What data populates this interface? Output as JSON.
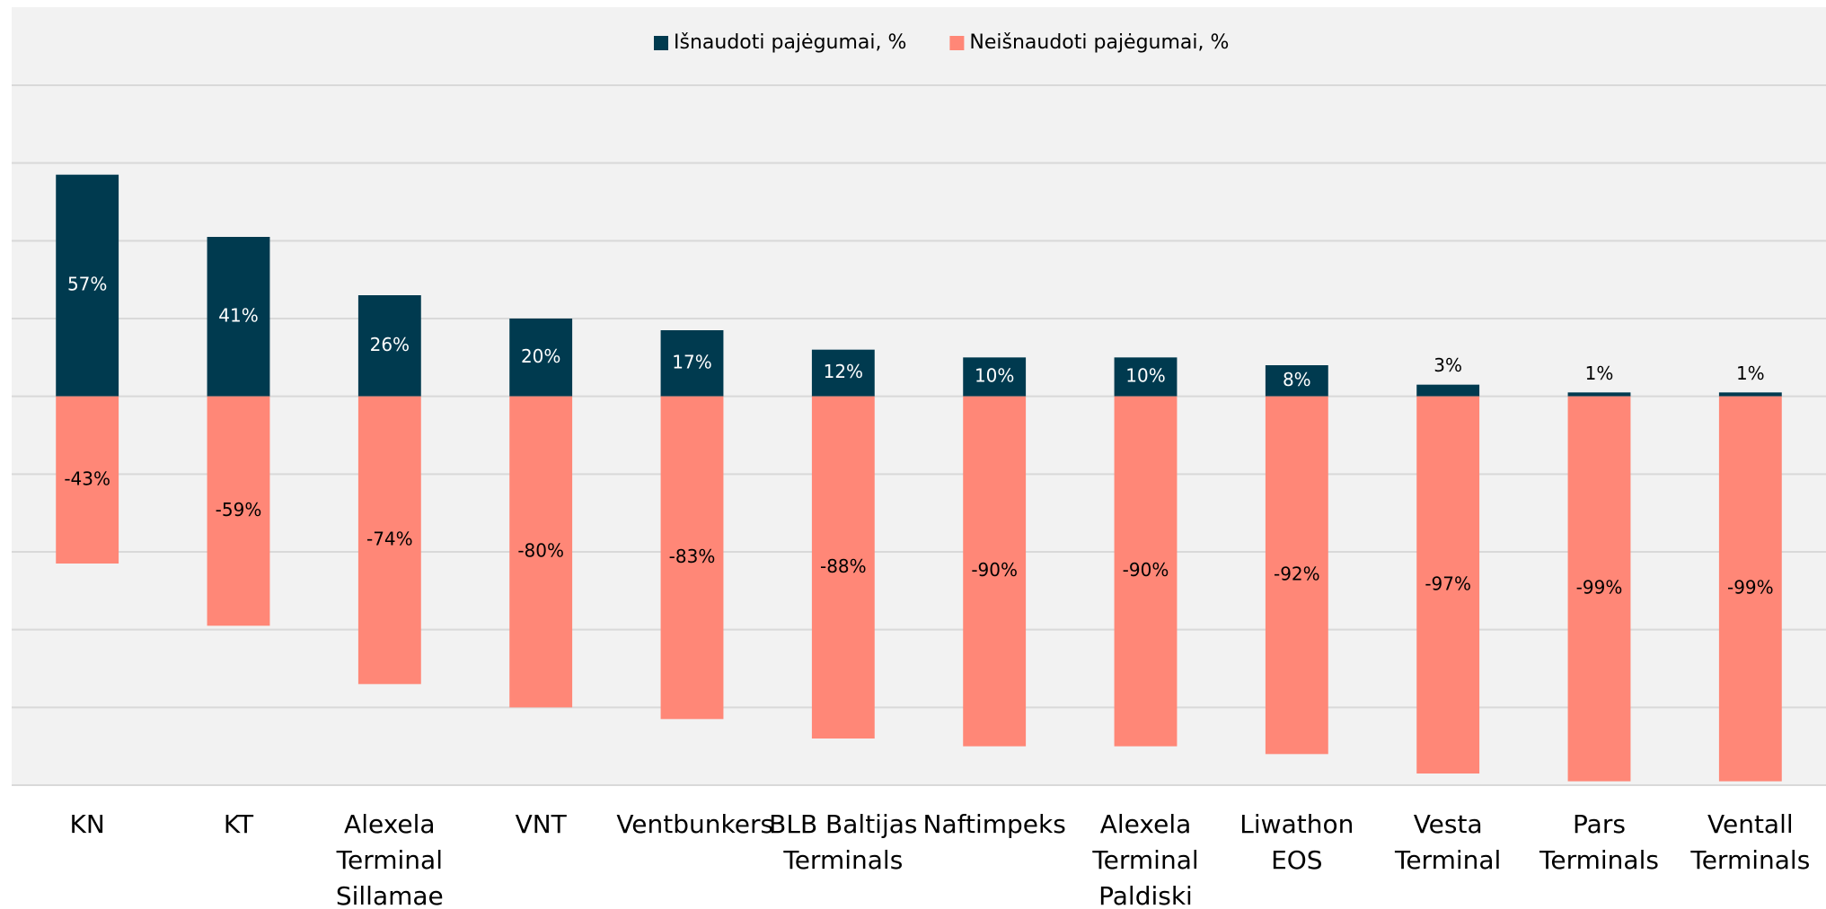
{
  "chart_data": {
    "type": "bar",
    "categories": [
      "KN",
      "KT",
      "Alexela Terminal Sillamae",
      "VNT",
      "Ventbunkers",
      "BLB Baltijas Terminals",
      "Naftimpeks",
      "Alexela Terminal Paldiski",
      "Liwathon EOS",
      "Vesta Terminal",
      "Pars Terminals",
      "Ventall Terminals"
    ],
    "series": [
      {
        "name": "Išnaudoti pajėgumai, %",
        "color": "#003a4f",
        "values": [
          57,
          41,
          26,
          20,
          17,
          12,
          10,
          10,
          8,
          3,
          1,
          1
        ],
        "value_labels": [
          "57%",
          "41%",
          "26%",
          "20%",
          "17%",
          "12%",
          "10%",
          "10%",
          "8%",
          "3%",
          "1%",
          "1%"
        ]
      },
      {
        "name": "Neišnaudoti pajėgumai, %",
        "color": "#ff8777",
        "values": [
          -43,
          -59,
          -74,
          -80,
          -83,
          -88,
          -90,
          -90,
          -92,
          -97,
          -99,
          -99
        ],
        "value_labels": [
          "-43%",
          "-59%",
          "-74%",
          "-80%",
          "-83%",
          "-88%",
          "-90%",
          "-90%",
          "-92%",
          "-97%",
          "-99%",
          "-99%"
        ]
      }
    ],
    "ylim": [
      -100,
      80
    ],
    "yticks": [
      -100,
      -80,
      -60,
      -40,
      -20,
      0,
      20,
      40,
      60,
      80
    ],
    "grid": true,
    "legend": "top"
  }
}
